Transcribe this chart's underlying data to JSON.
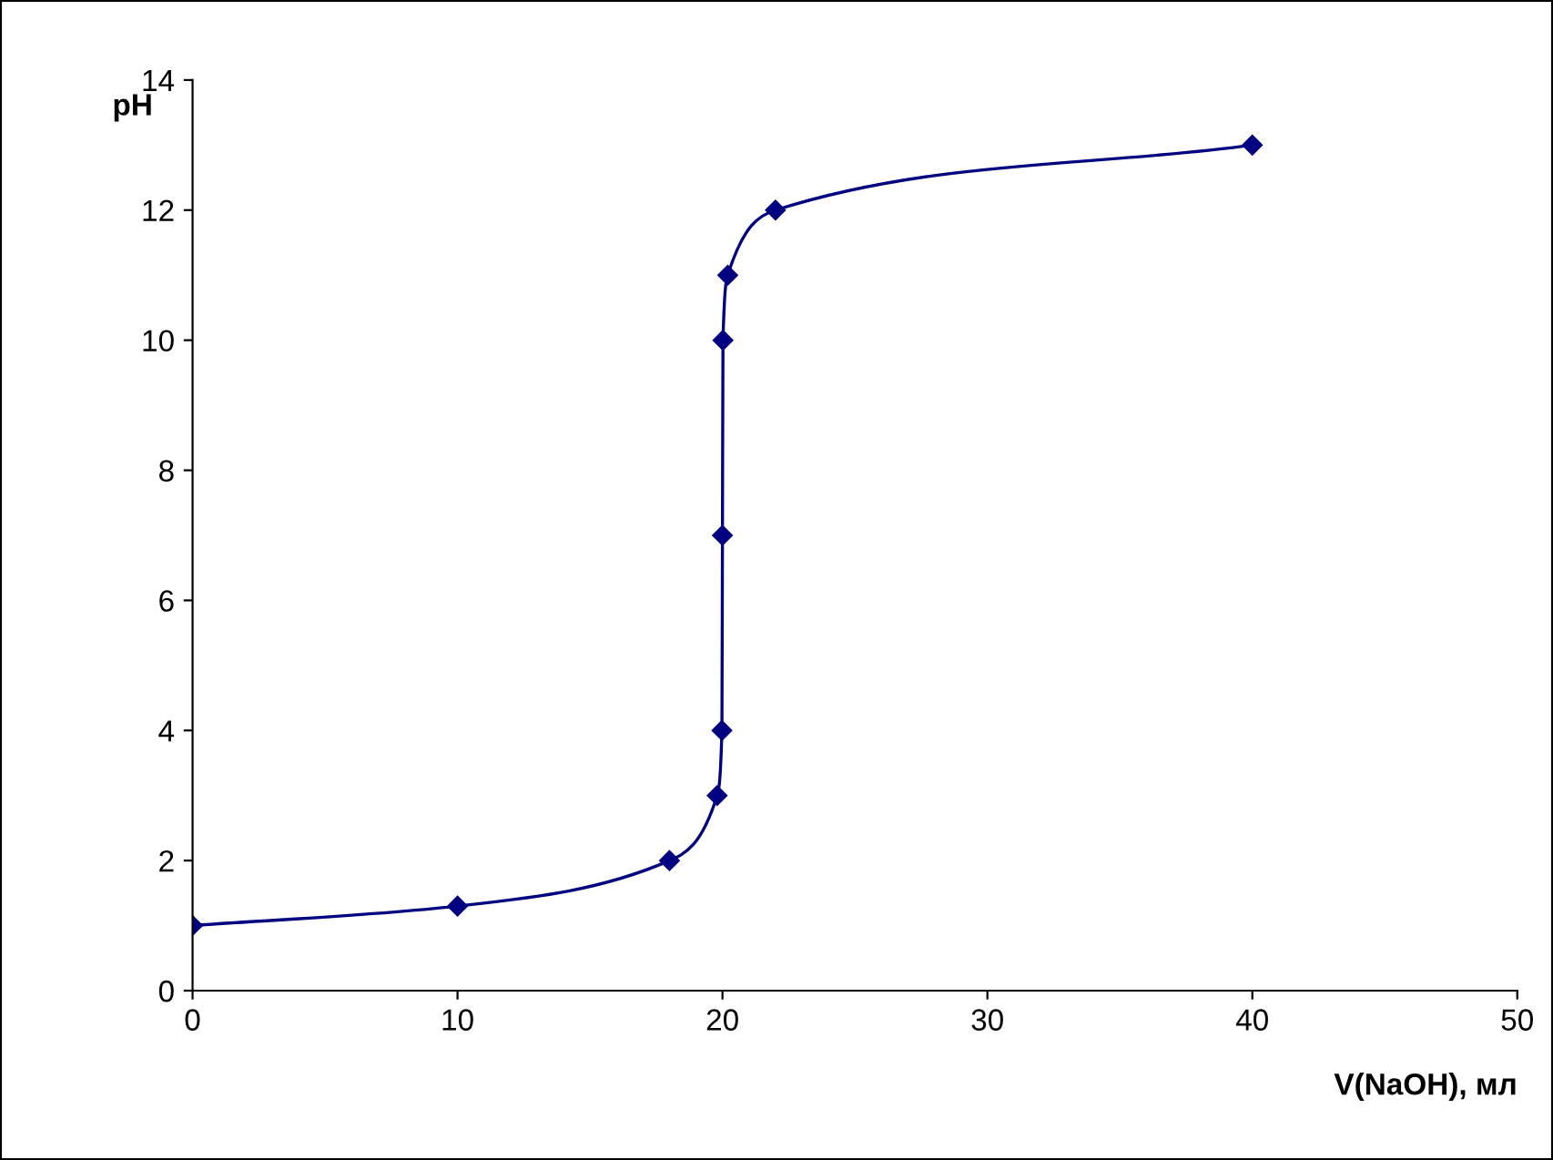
{
  "chart_data": {
    "type": "line",
    "xlabel": "V(NaOH), мл",
    "ylabel": "pH",
    "series": [
      {
        "color": "#000080",
        "x": [
          0,
          10,
          18,
          19.8,
          19.98,
          20,
          20.02,
          20.2,
          22,
          40
        ],
        "values": [
          1,
          1.3,
          2,
          3,
          4,
          7,
          10,
          11,
          12,
          13
        ]
      }
    ],
    "xlim": [
      0,
      50
    ],
    "xticks": [
      0,
      10,
      20,
      30,
      40,
      50
    ],
    "ylim": [
      0,
      14
    ],
    "yticks": [
      0,
      2,
      4,
      6,
      8,
      10,
      12,
      14
    ],
    "grid": false,
    "marker": "diamond",
    "line_style": "solid"
  }
}
